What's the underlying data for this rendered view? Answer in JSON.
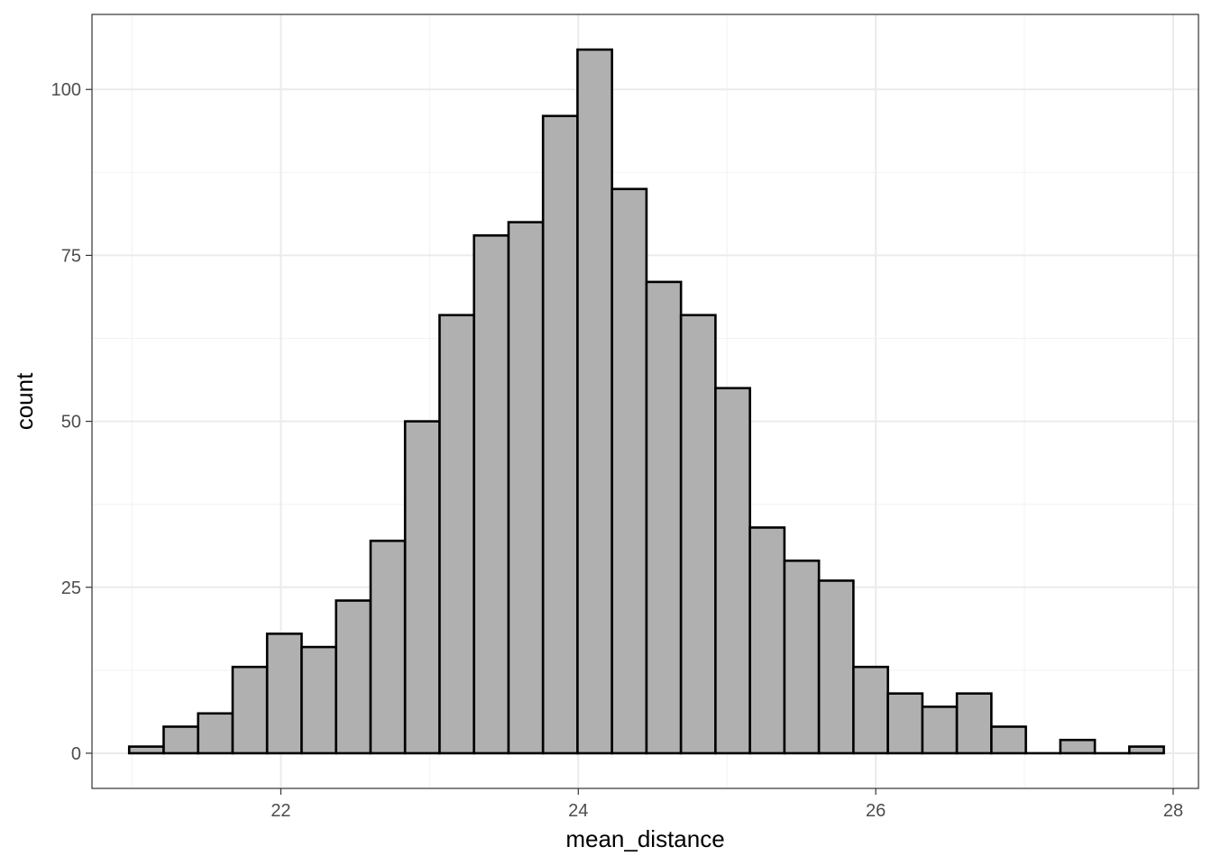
{
  "chart_data": {
    "type": "bar",
    "subtype": "histogram",
    "title": "",
    "xlabel": "mean_distance",
    "ylabel": "count",
    "x_bin_start": 20.98,
    "x_bin_width": 0.2319,
    "values": [
      1,
      4,
      6,
      13,
      18,
      16,
      23,
      32,
      50,
      66,
      78,
      80,
      96,
      106,
      85,
      71,
      66,
      55,
      34,
      29,
      26,
      13,
      9,
      7,
      9,
      4,
      0,
      2,
      0,
      1
    ],
    "xlim": [
      20.73,
      28.17
    ],
    "ylim": [
      -5.3,
      111.3
    ],
    "x_ticks": [
      22,
      24,
      26,
      28
    ],
    "x_tick_labels": [
      "22",
      "24",
      "26",
      "28"
    ],
    "x_minor_ticks": [
      21,
      23,
      25,
      27
    ],
    "y_ticks": [
      0,
      25,
      50,
      75,
      100
    ],
    "y_tick_labels": [
      "0",
      "25",
      "50",
      "75",
      "100"
    ],
    "y_minor_ticks": [
      12.5,
      37.5,
      62.5,
      87.5
    ],
    "grid": true,
    "legend": "none",
    "colors": {
      "bar_fill": "#b0b0b0",
      "bar_outline": "#000000",
      "panel_border": "#333333"
    }
  }
}
